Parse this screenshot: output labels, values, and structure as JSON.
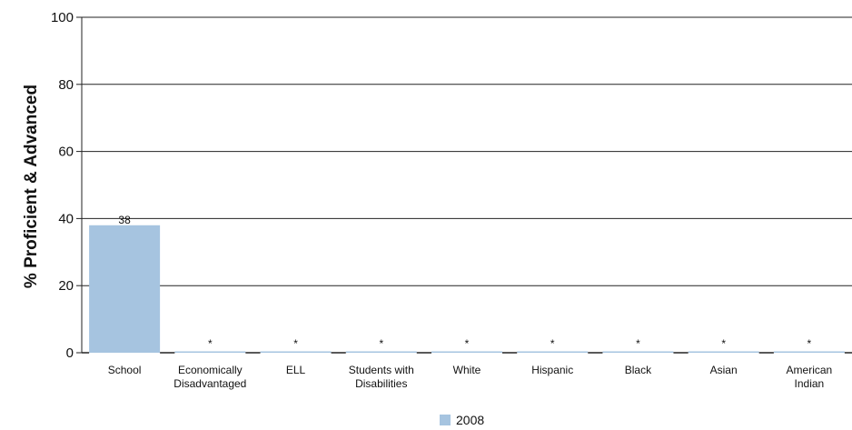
{
  "chart_data": {
    "type": "bar",
    "ylabel": "% Proficient & Advanced",
    "ylim": [
      0,
      100
    ],
    "yticks": [
      "0",
      "20",
      "40",
      "60",
      "80",
      "100"
    ],
    "grid": true,
    "legend_position": "bottom-center",
    "categories": [
      [
        "School"
      ],
      [
        "Economically",
        "Disadvantaged"
      ],
      [
        "ELL"
      ],
      [
        "Students with",
        "Disabilities"
      ],
      [
        "White"
      ],
      [
        "Hispanic"
      ],
      [
        "Black"
      ],
      [
        "Asian"
      ],
      [
        "American",
        "Indian"
      ]
    ],
    "series": [
      {
        "name": "2008",
        "color": "#a6c4e0",
        "values": [
          38,
          null,
          null,
          null,
          null,
          null,
          null,
          null,
          null
        ],
        "labels": [
          "38",
          "*",
          "*",
          "*",
          "*",
          "*",
          "*",
          "*",
          "*"
        ]
      }
    ]
  }
}
